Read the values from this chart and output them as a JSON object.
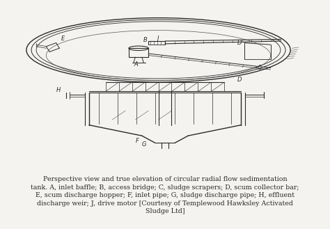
{
  "background_color": "#f5f3f0",
  "fig_width": 4.74,
  "fig_height": 3.29,
  "dpi": 100,
  "caption_lines": [
    "Perspective view and true elevation of circular radial flow sedimentation",
    "tank. A, inlet baffle; B, access bridge; C, sludge scrapers; D, scum collector bar;",
    "E, scum discharge hopper; F, inlet pipe; G, sludge discharge pipe; H, effluent",
    "discharge weir; J, drive motor [Courtesy of Templewood Hawksley Activated",
    "Sludge Ltd]"
  ],
  "caption_fontsize": 6.8,
  "dark": "#2a2a2a",
  "gray": "#555555",
  "light_gray": "#999999"
}
